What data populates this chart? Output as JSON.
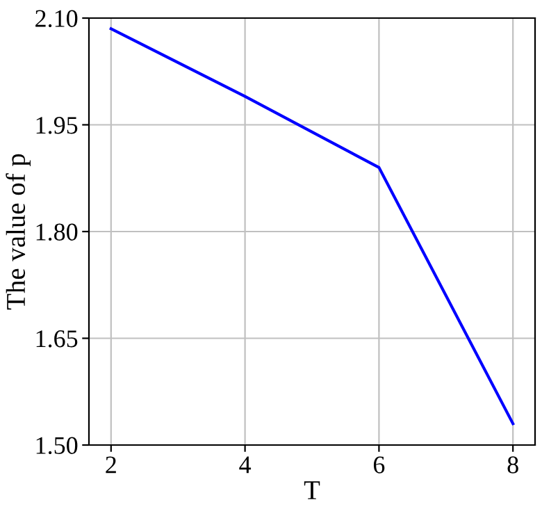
{
  "chart_data": {
    "type": "line",
    "xlabel": "T",
    "ylabel": "The value of p",
    "x": [
      2,
      4,
      6,
      8
    ],
    "series": [
      {
        "color": "#0000ff",
        "values": [
          2.085,
          1.99,
          1.89,
          1.53
        ]
      }
    ],
    "xlim": [
      1.67,
      8.33
    ],
    "xticks": [
      2,
      4,
      6,
      8
    ],
    "ylim": [
      1.5,
      2.1
    ],
    "yticks": [
      {
        "value": 1.5,
        "label": "1.50"
      },
      {
        "value": 1.65,
        "label": "1.65"
      },
      {
        "value": 1.8,
        "label": "1.80"
      },
      {
        "value": 1.95,
        "label": "1.95"
      },
      {
        "value": 2.1,
        "label": "2.10"
      }
    ],
    "grid": true,
    "marker": "none",
    "line_style": "solid"
  }
}
